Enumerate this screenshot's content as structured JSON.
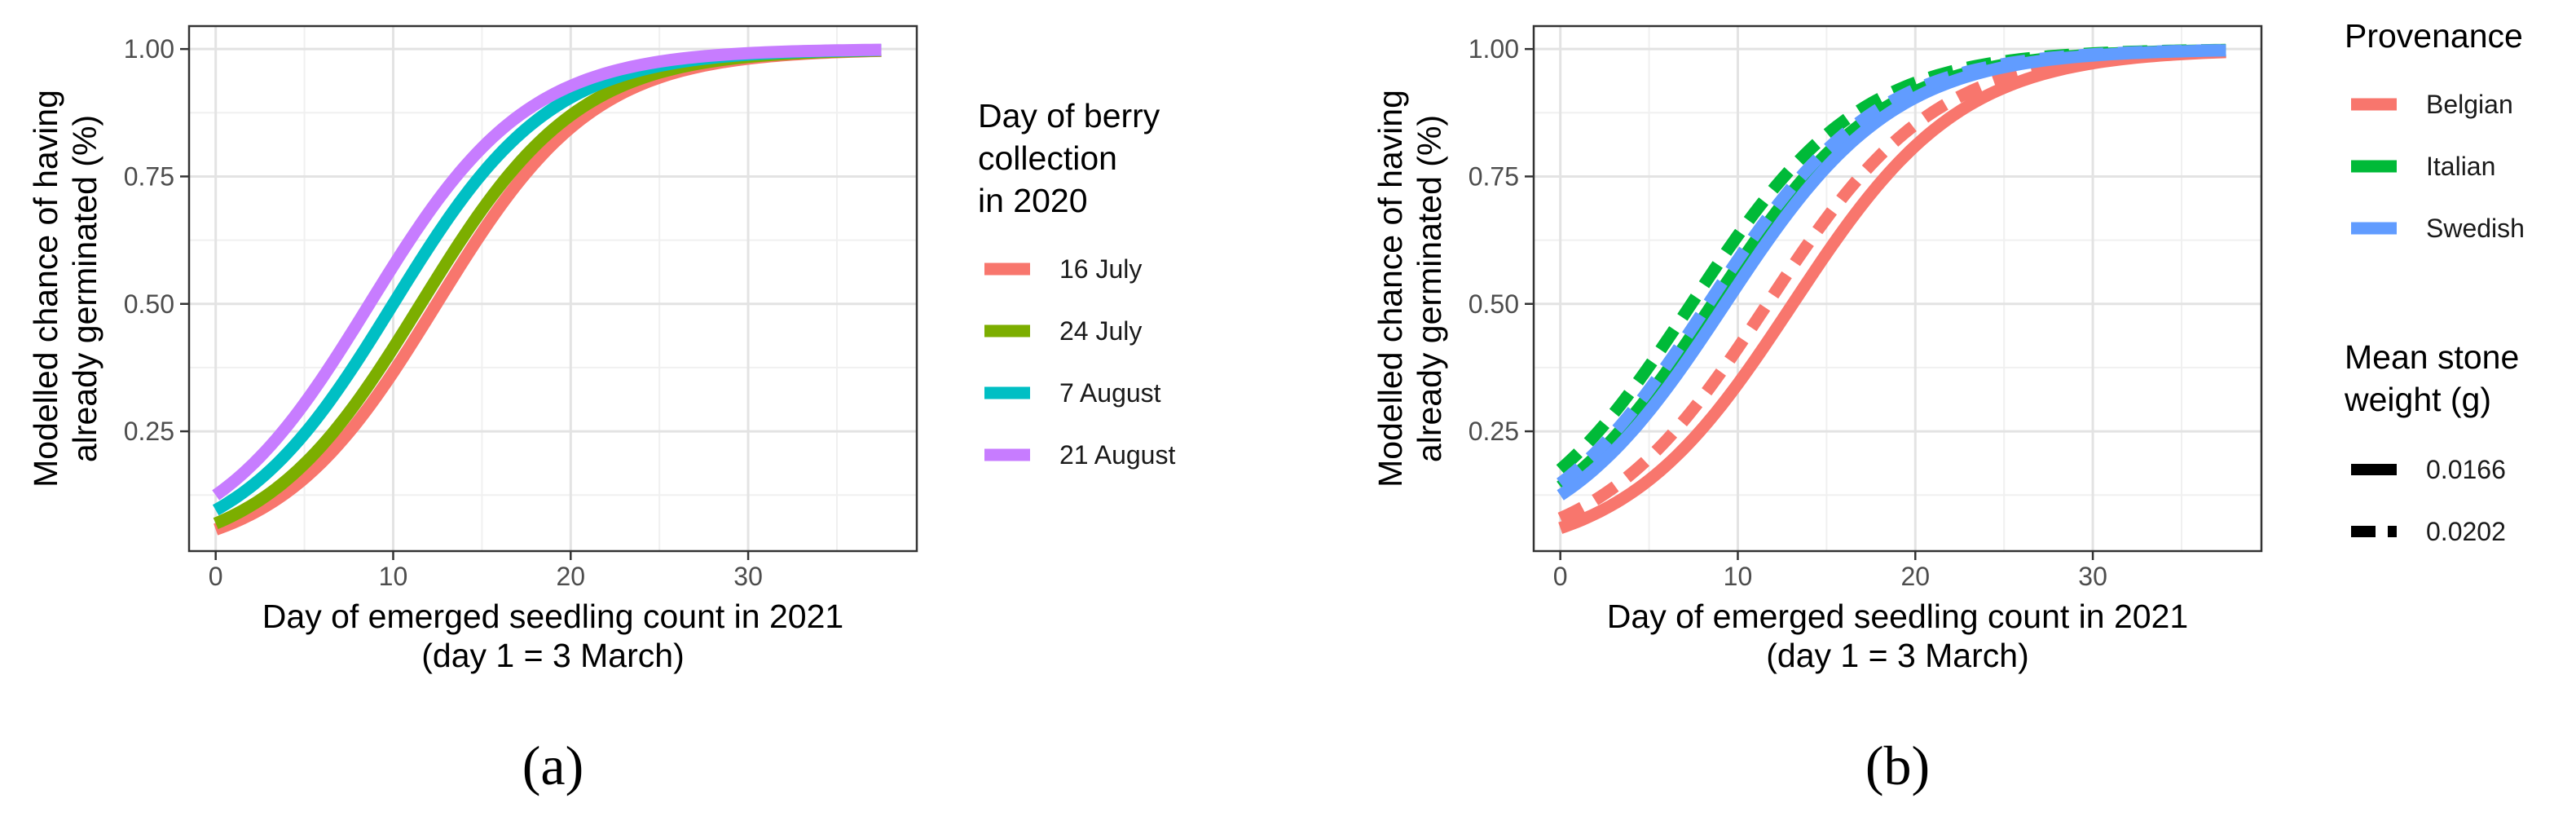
{
  "chart_data": [
    {
      "type": "line",
      "panel_label": "(a)",
      "xlabel_lines": [
        "Day of emerged seedling count in 2021",
        "(day 1 = 3 March)"
      ],
      "ylabel_lines": [
        "Modelled chance of having",
        "already germinated (%)"
      ],
      "xlim": [
        -1.5,
        39.5
      ],
      "ylim": [
        0.015,
        1.045
      ],
      "xticks": [
        0,
        10,
        20,
        30
      ],
      "xtick_labels": [
        "0",
        "10",
        "20",
        "30"
      ],
      "yticks": [
        0.25,
        0.5,
        0.75,
        1.0
      ],
      "ytick_labels": [
        "0.25",
        "0.50",
        "0.75",
        "1.00"
      ],
      "grid": true,
      "legend": {
        "position": "right",
        "title_lines": [
          "Day of berry",
          "collection",
          "in 2020"
        ]
      },
      "x_range": [
        0,
        37.5
      ],
      "series": [
        {
          "name": "16 July",
          "color": "#F8766D",
          "style": "solid",
          "intercept": -2.8,
          "slope": 0.225
        },
        {
          "name": "24 July",
          "color": "#7CAE00",
          "style": "solid",
          "intercept": -2.6,
          "slope": 0.225
        },
        {
          "name": "7 August",
          "color": "#00BFC4",
          "style": "solid",
          "intercept": -2.25,
          "slope": 0.225
        },
        {
          "name": "21 August",
          "color": "#C77CFF",
          "style": "solid",
          "intercept": -1.95,
          "slope": 0.225
        }
      ]
    },
    {
      "type": "line",
      "panel_label": "(b)",
      "xlabel_lines": [
        "Day of emerged seedling count in 2021",
        "(day 1 = 3 March)"
      ],
      "ylabel_lines": [
        "Modelled chance of having",
        "already germinated (%)"
      ],
      "xlim": [
        -1.5,
        39.5
      ],
      "ylim": [
        0.015,
        1.045
      ],
      "xticks": [
        0,
        10,
        20,
        30
      ],
      "xtick_labels": [
        "0",
        "10",
        "20",
        "30"
      ],
      "yticks": [
        0.25,
        0.5,
        0.75,
        1.0
      ],
      "ytick_labels": [
        "0.25",
        "0.50",
        "0.75",
        "1.00"
      ],
      "grid": true,
      "legend": {
        "position": "right",
        "color_title": "Provenance",
        "color_entries": [
          {
            "name": "Belgian",
            "color": "#F8766D"
          },
          {
            "name": "Italian",
            "color": "#00BA38"
          },
          {
            "name": "Swedish",
            "color": "#619CFF"
          }
        ],
        "linetype_title_lines": [
          "Mean stone",
          "weight (g)"
        ],
        "linetype_entries": [
          {
            "name": "0.0166",
            "style": "solid"
          },
          {
            "name": "0.0202",
            "style": "dashed"
          }
        ]
      },
      "x_range": [
        0,
        37.5
      ],
      "series": [
        {
          "name": "Belgian, 0.0166",
          "color": "#F8766D",
          "style": "solid",
          "intercept": -2.75,
          "slope": 0.21
        },
        {
          "name": "Belgian, 0.0202",
          "color": "#F8766D",
          "style": "dashed",
          "intercept": -2.45,
          "slope": 0.21
        },
        {
          "name": "Italian, 0.0166",
          "color": "#00BA38",
          "style": "solid",
          "intercept": -1.8,
          "slope": 0.21
        },
        {
          "name": "Italian, 0.0202",
          "color": "#00BA38",
          "style": "dashed",
          "intercept": -1.55,
          "slope": 0.21
        },
        {
          "name": "Swedish, 0.0166",
          "color": "#619CFF",
          "style": "solid",
          "intercept": -1.95,
          "slope": 0.21
        },
        {
          "name": "Swedish, 0.0202",
          "color": "#619CFF",
          "style": "dashed",
          "intercept": -1.75,
          "slope": 0.21
        }
      ]
    }
  ]
}
